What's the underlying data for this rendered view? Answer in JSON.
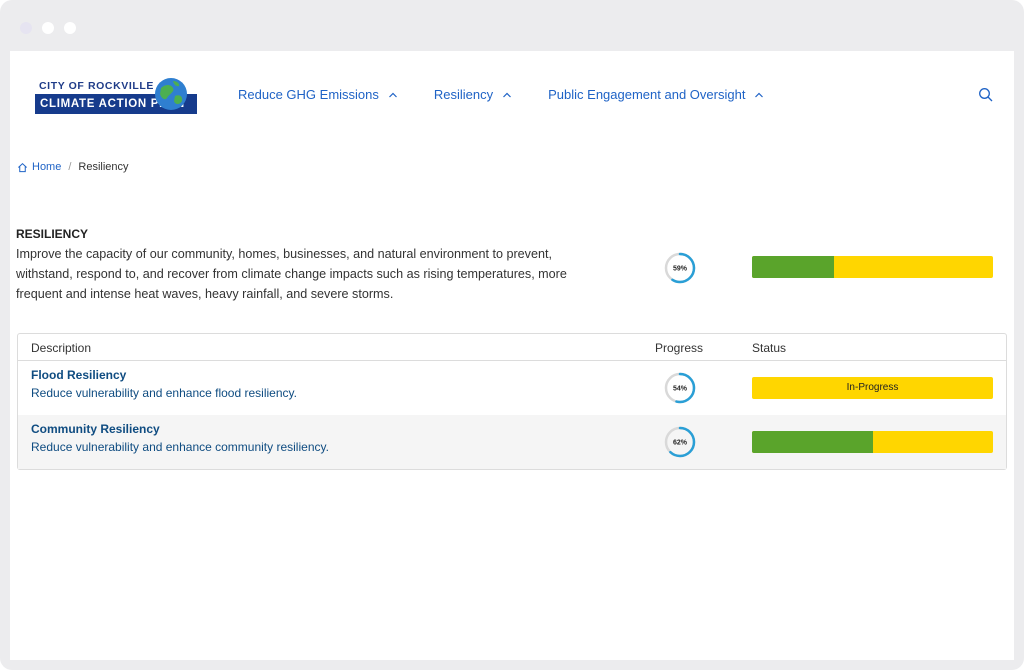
{
  "header": {
    "logo_top": "CITY OF ROCKVILLE",
    "logo_bottom": "CLIMATE ACTION PLAN",
    "nav": [
      {
        "label": "Reduce GHG Emissions"
      },
      {
        "label": "Resiliency"
      },
      {
        "label": "Public Engagement and Oversight"
      }
    ],
    "search_icon": "search-icon"
  },
  "breadcrumb": {
    "home": "Home",
    "separator": "/",
    "current": "Resiliency"
  },
  "section": {
    "title": "RESILIENCY",
    "description": "Improve the capacity of our community, homes, businesses, and natural environment to prevent, withstand, respond to, and recover from climate change impacts such as rising temperatures, more frequent and intense heat waves, heavy rainfall, and severe storms.",
    "progress_label": "59%",
    "progress": 59,
    "status_complete_fraction": 0.34
  },
  "table": {
    "headers": {
      "description": "Description",
      "progress": "Progress",
      "status": "Status"
    },
    "rows": [
      {
        "title": "Flood Resiliency",
        "description": "Reduce vulnerability and enhance flood resiliency.",
        "progress_label": "54%",
        "progress": 54,
        "status_label": "In-Progress",
        "status_complete_fraction": 0
      },
      {
        "title": "Community Resiliency",
        "description": "Reduce vulnerability and enhance community resiliency.",
        "progress_label": "62%",
        "progress": 62,
        "status_label": "",
        "status_complete_fraction": 0.5
      }
    ]
  },
  "colors": {
    "ring_track": "#d9d9d9",
    "ring_fill": "#2a9fd6",
    "status_complete": "#5aa42b",
    "status_in_progress": "#ffd600"
  }
}
